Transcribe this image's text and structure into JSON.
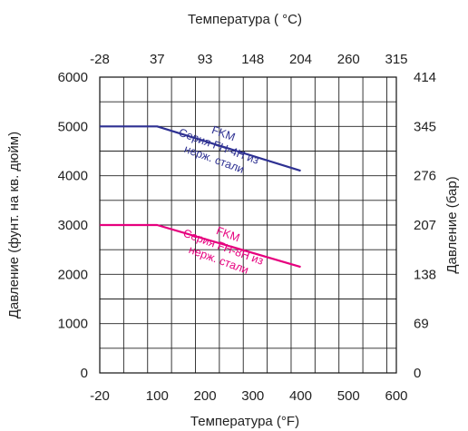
{
  "chart_data": {
    "type": "line",
    "title": "",
    "axes": {
      "x_bottom": {
        "label": "Температура (°F)",
        "range": [
          -20,
          600
        ],
        "ticks": [
          -20,
          100,
          200,
          300,
          400,
          500,
          600
        ],
        "tick_labels": [
          "-20",
          "100",
          "200",
          "300",
          "400",
          "500",
          "600"
        ]
      },
      "x_top": {
        "label": "Температура ( °C)",
        "ticks_at_f": [
          -20,
          100,
          200,
          300,
          400,
          500,
          600
        ],
        "tick_labels": [
          "-28",
          "37",
          "93",
          "148",
          "204",
          "260",
          "315"
        ]
      },
      "y_left": {
        "label": "Давление (фунт. на кв. дюйм)",
        "range": [
          0,
          6000
        ],
        "ticks": [
          0,
          1000,
          2000,
          3000,
          4000,
          5000,
          6000
        ],
        "tick_labels": [
          "0",
          "1000",
          "2000",
          "3000",
          "4000",
          "5000",
          "6000"
        ]
      },
      "y_right": {
        "label": "Давление (бар)",
        "ticks_at_psi": [
          0,
          1000,
          2000,
          3000,
          4000,
          5000,
          6000
        ],
        "tick_labels": [
          "0",
          "69",
          "138",
          "207",
          "276",
          "345",
          "414"
        ]
      }
    },
    "grid": true,
    "grid_x_step": 50,
    "grid_y_step": 500,
    "legend": "none",
    "series": [
      {
        "color": "#2e3192",
        "x": [
          -20,
          100,
          400
        ],
        "y": [
          5000,
          5000,
          4100
        ],
        "annotation": [
          "FKM",
          "Серия FH-4H из",
          "нерж. стали"
        ]
      },
      {
        "color": "#e6007e",
        "x": [
          -20,
          100,
          400
        ],
        "y": [
          3000,
          3000,
          2150
        ],
        "annotation": [
          "FKM",
          "Серия FH-8H из",
          "нерж. стали"
        ]
      }
    ]
  }
}
